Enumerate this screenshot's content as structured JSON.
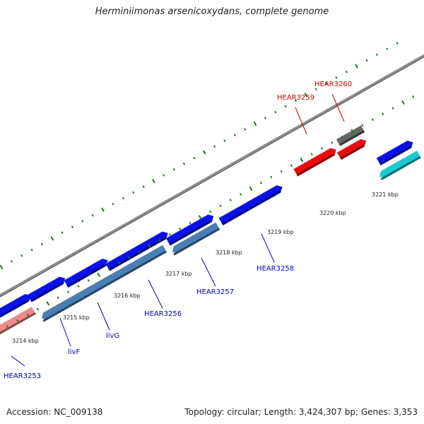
{
  "title": "Herminiimonas arsenicoxydans, complete genome",
  "footer": {
    "accession": "Accession: NC_009138",
    "stats": "Topology: circular; Length: 3,424,307 bp; Genes: 3,353"
  },
  "colors": {
    "blue_gene": "#0a10e8",
    "steelblue_gene": "#4a7fb5",
    "salmon_gene": "#f08a8a",
    "red_gene": "#e80c0c",
    "gray_gene": "#666666",
    "cyan_gene": "#1ac9d0",
    "backbone": "#8a8a8a",
    "ticks": "#1a7a1a",
    "label_blue": "#0000bb",
    "label_red": "#cc0000"
  },
  "tick_labels": [
    "3214 kbp",
    "3215 kbp",
    "3216 kbp",
    "3217 kbp",
    "3218 kbp",
    "3219 kbp",
    "3220 kbp",
    "3221 kbp"
  ],
  "gene_labels": [
    "HEAR3253",
    "livF",
    "livG",
    "HEAR3256",
    "HEAR3257",
    "HEAR3258",
    "HEAR3259",
    "HEAR3260"
  ]
}
